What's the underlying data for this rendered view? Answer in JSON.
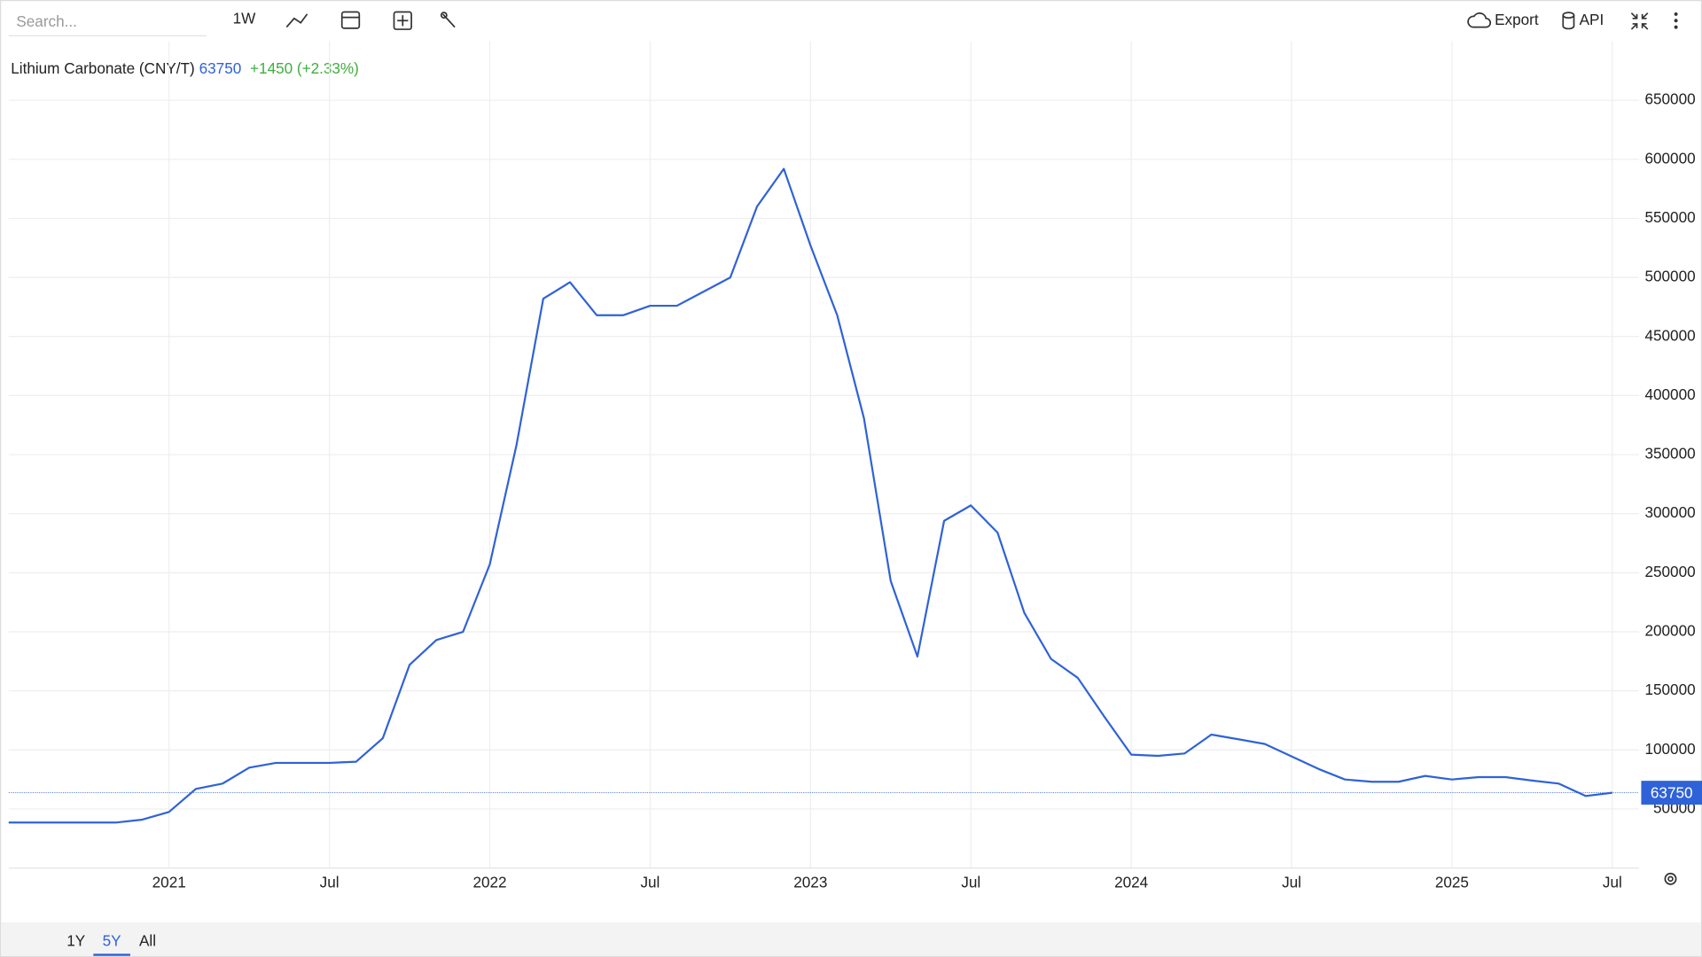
{
  "toolbar": {
    "search_placeholder": "Search...",
    "interval": "1W",
    "export": "Export",
    "api": "API"
  },
  "ranges": [
    "1Y",
    "5Y",
    "All"
  ],
  "chart_data": {
    "type": "line",
    "title": "Lithium Carbonate (CNY/T)",
    "change": "+1450 (+2.33%)",
    "color": "#2f62d8",
    "change_color": "#3fae3f",
    "grid": true,
    "x": [
      "2020-07",
      "2020-08",
      "2020-09",
      "2020-10",
      "2020-11",
      "2020-12",
      "2021-01",
      "2021-02",
      "2021-03",
      "2021-04",
      "2021-05",
      "2021-06",
      "2021-07",
      "2021-08",
      "2021-09",
      "2021-10",
      "2021-11",
      "2021-12",
      "2022-01",
      "2022-02",
      "2022-03",
      "2022-04",
      "2022-05",
      "2022-06",
      "2022-07",
      "2022-08",
      "2022-09",
      "2022-10",
      "2022-11",
      "2022-12",
      "2023-01",
      "2023-02",
      "2023-03",
      "2023-04",
      "2023-05",
      "2023-06",
      "2023-07",
      "2023-08",
      "2023-09",
      "2023-10",
      "2023-11",
      "2023-12",
      "2024-01",
      "2024-02",
      "2024-03",
      "2024-04",
      "2024-05",
      "2024-06",
      "2024-07",
      "2024-08",
      "2024-09",
      "2024-10",
      "2024-11",
      "2024-12",
      "2025-01",
      "2025-02",
      "2025-03",
      "2025-04",
      "2025-05",
      "2025-06",
      "2025-07"
    ],
    "values": [
      38500,
      38500,
      38500,
      38500,
      38500,
      41000,
      47500,
      67000,
      71500,
      85000,
      89000,
      89000,
      89000,
      90000,
      110000,
      172000,
      193000,
      200000,
      257000,
      358000,
      482000,
      496000,
      468000,
      468000,
      476000,
      476000,
      488000,
      500000,
      560000,
      592000,
      527000,
      468000,
      381000,
      243000,
      179000,
      294000,
      307000,
      284000,
      216000,
      177000,
      161000,
      128000,
      96000,
      95000,
      97000,
      113000,
      109000,
      105000,
      94500,
      84000,
      75000,
      73000,
      73000,
      78000,
      75000,
      77000,
      77000,
      74000,
      71500,
      61000,
      63750
    ],
    "xlim": [
      "2020-07",
      "2025-08"
    ],
    "xticks": [
      {
        "value": "2021-01",
        "label": "2021"
      },
      {
        "value": "2021-07",
        "label": "Jul"
      },
      {
        "value": "2022-01",
        "label": "2022"
      },
      {
        "value": "2022-07",
        "label": "Jul"
      },
      {
        "value": "2023-01",
        "label": "2023"
      },
      {
        "value": "2023-07",
        "label": "Jul"
      },
      {
        "value": "2024-01",
        "label": "2024"
      },
      {
        "value": "2024-07",
        "label": "Jul"
      },
      {
        "value": "2025-01",
        "label": "2025"
      },
      {
        "value": "2025-07",
        "label": "Jul"
      }
    ],
    "ylim": [
      0,
      700000
    ],
    "yticks": [
      50000,
      100000,
      150000,
      200000,
      250000,
      300000,
      350000,
      400000,
      450000,
      500000,
      550000,
      600000,
      650000
    ]
  }
}
